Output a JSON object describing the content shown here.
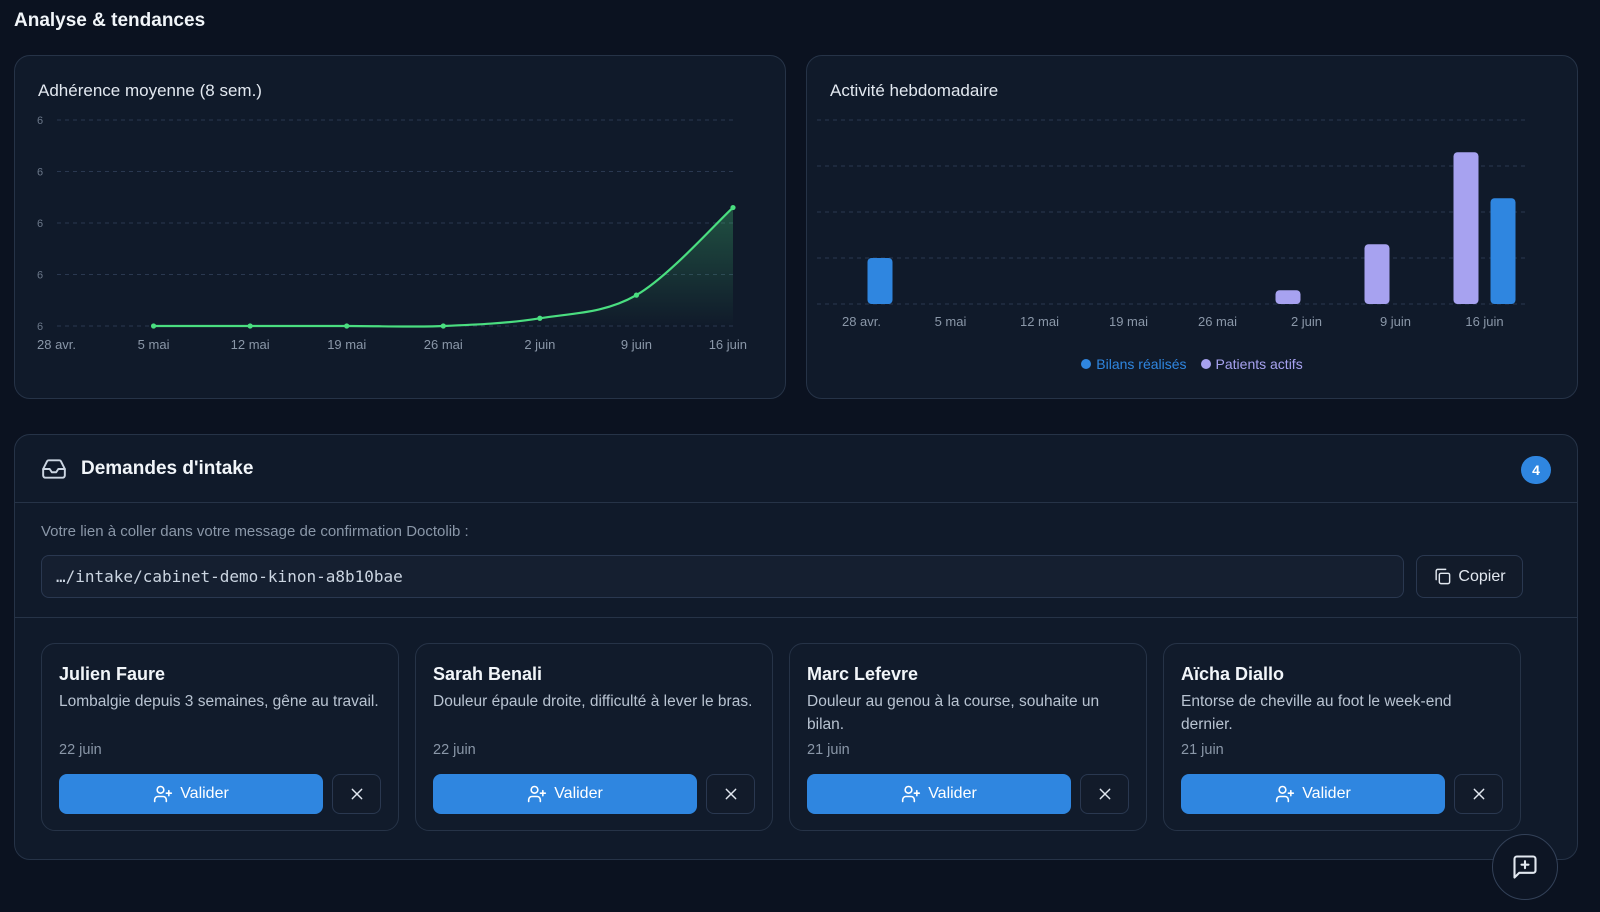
{
  "section": {
    "title": "Analyse & tendances"
  },
  "charts": {
    "adherence": {
      "title": "Adhérence moyenne (8 sem.)",
      "line_color": "#4ade80",
      "ytick_label": "6"
    },
    "activity": {
      "title": "Activité hebdomadaire",
      "colors": {
        "bilans": "#2f86e0",
        "patients": "#a7a2f0"
      },
      "legend": [
        "Bilans réalisés",
        "Patients actifs"
      ]
    }
  },
  "chart_data": [
    {
      "type": "area",
      "title": "Adhérence moyenne (8 sem.)",
      "categories": [
        "28 avr.",
        "5 mai",
        "12 mai",
        "19 mai",
        "26 mai",
        "2 juin",
        "9 juin",
        "16 juin"
      ],
      "series": [
        {
          "values": [
            null,
            0,
            0,
            0,
            0,
            0.15,
            0.6,
            2.3
          ]
        }
      ],
      "yticks": [
        "6",
        "6",
        "6",
        "6",
        "6"
      ],
      "ylim": [
        0,
        4
      ],
      "grid": true
    },
    {
      "type": "bar",
      "title": "Activité hebdomadaire",
      "categories": [
        "28 avr.",
        "5 mai",
        "12 mai",
        "19 mai",
        "26 mai",
        "2 juin",
        "9 juin",
        "16 juin"
      ],
      "series": [
        {
          "name": "Patients actifs",
          "values": [
            0,
            0,
            0,
            0,
            0,
            0.3,
            1.3,
            3.3
          ]
        },
        {
          "name": "Bilans réalisés",
          "values": [
            1,
            0,
            0,
            0,
            0,
            0,
            0,
            2.3
          ]
        }
      ],
      "ylim": [
        0,
        4
      ],
      "grid": true,
      "legend_position": "bottom-center"
    }
  ],
  "intake": {
    "title": "Demandes d'intake",
    "count": "4",
    "link_label": "Votre lien à coller dans votre message de confirmation Doctolib :",
    "link_value": "…/intake/cabinet-demo-kinon-a8b10bae",
    "copy_label": "Copier",
    "requests": [
      {
        "name": "Julien Faure",
        "desc": "Lombalgie depuis 3 semaines, gêne au travail.",
        "date": "22 juin",
        "validate_label": "Valider"
      },
      {
        "name": "Sarah Benali",
        "desc": "Douleur épaule droite, difficulté à lever le bras.",
        "date": "22 juin",
        "validate_label": "Valider"
      },
      {
        "name": "Marc Lefevre",
        "desc": "Douleur au genou à la course, souhaite un bilan.",
        "date": "21 juin",
        "validate_label": "Valider"
      },
      {
        "name": "Aïcha Diallo",
        "desc": "Entorse de cheville au foot le week-end dernier.",
        "date": "21 juin",
        "validate_label": "Valider"
      }
    ]
  },
  "icons": {
    "inbox": "inbox-icon",
    "copy": "copy-icon",
    "add_user": "user-plus-icon",
    "close": "close-icon",
    "feedback": "message-plus-icon"
  }
}
